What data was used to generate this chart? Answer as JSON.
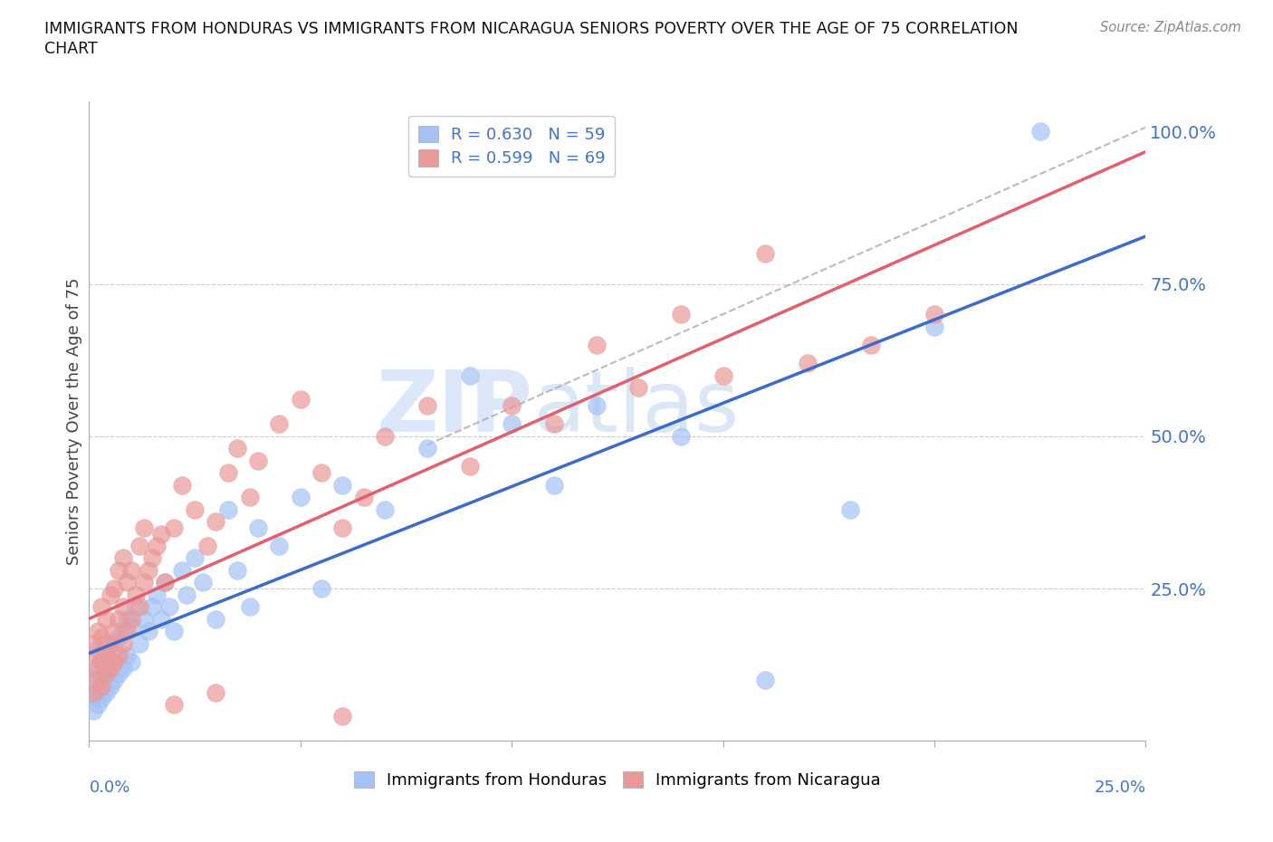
{
  "title_line1": "IMMIGRANTS FROM HONDURAS VS IMMIGRANTS FROM NICARAGUA SENIORS POVERTY OVER THE AGE OF 75 CORRELATION",
  "title_line2": "CHART",
  "source": "Source: ZipAtlas.com",
  "ylabel": "Seniors Poverty Over the Age of 75",
  "watermark_zip": "ZIP",
  "watermark_atlas": "atlas",
  "legend_r_honduras": "R = 0.630",
  "legend_n_honduras": "N = 59",
  "legend_r_nicaragua": "R = 0.599",
  "legend_n_nicaragua": "N = 69",
  "color_honduras": "#a4c2f4",
  "color_nicaragua": "#ea9999",
  "color_trendline_honduras": "#3d6bca",
  "color_trendline_nicaragua": "#e06070",
  "color_trendline_dashed": "#aaaaaa",
  "color_axis_labels": "#4472c4",
  "color_grid": "#cccccc",
  "honduras_x": [
    0.001,
    0.001,
    0.001,
    0.002,
    0.002,
    0.002,
    0.002,
    0.003,
    0.003,
    0.003,
    0.004,
    0.004,
    0.004,
    0.005,
    0.005,
    0.006,
    0.006,
    0.007,
    0.007,
    0.008,
    0.008,
    0.009,
    0.009,
    0.01,
    0.01,
    0.011,
    0.012,
    0.013,
    0.014,
    0.015,
    0.016,
    0.017,
    0.018,
    0.019,
    0.02,
    0.022,
    0.023,
    0.025,
    0.027,
    0.03,
    0.033,
    0.035,
    0.038,
    0.04,
    0.045,
    0.05,
    0.055,
    0.06,
    0.07,
    0.08,
    0.09,
    0.1,
    0.11,
    0.12,
    0.14,
    0.16,
    0.18,
    0.2,
    0.225
  ],
  "honduras_y": [
    0.05,
    0.07,
    0.1,
    0.06,
    0.08,
    0.12,
    0.15,
    0.07,
    0.1,
    0.14,
    0.08,
    0.12,
    0.16,
    0.09,
    0.13,
    0.1,
    0.15,
    0.11,
    0.17,
    0.12,
    0.18,
    0.14,
    0.2,
    0.13,
    0.19,
    0.22,
    0.16,
    0.2,
    0.18,
    0.22,
    0.24,
    0.2,
    0.26,
    0.22,
    0.18,
    0.28,
    0.24,
    0.3,
    0.26,
    0.2,
    0.38,
    0.28,
    0.22,
    0.35,
    0.32,
    0.4,
    0.25,
    0.42,
    0.38,
    0.48,
    0.6,
    0.52,
    0.42,
    0.55,
    0.5,
    0.1,
    0.38,
    0.68,
    1.0
  ],
  "nicaragua_x": [
    0.001,
    0.001,
    0.001,
    0.002,
    0.002,
    0.002,
    0.003,
    0.003,
    0.003,
    0.003,
    0.004,
    0.004,
    0.004,
    0.005,
    0.005,
    0.005,
    0.006,
    0.006,
    0.006,
    0.007,
    0.007,
    0.007,
    0.008,
    0.008,
    0.008,
    0.009,
    0.009,
    0.01,
    0.01,
    0.011,
    0.012,
    0.012,
    0.013,
    0.013,
    0.014,
    0.015,
    0.016,
    0.017,
    0.018,
    0.02,
    0.022,
    0.025,
    0.028,
    0.03,
    0.033,
    0.035,
    0.038,
    0.04,
    0.045,
    0.05,
    0.055,
    0.06,
    0.065,
    0.07,
    0.08,
    0.09,
    0.1,
    0.11,
    0.12,
    0.13,
    0.14,
    0.15,
    0.16,
    0.17,
    0.185,
    0.2,
    0.02,
    0.03,
    0.06
  ],
  "nicaragua_y": [
    0.08,
    0.12,
    0.16,
    0.1,
    0.14,
    0.18,
    0.09,
    0.13,
    0.17,
    0.22,
    0.11,
    0.15,
    0.2,
    0.12,
    0.16,
    0.24,
    0.13,
    0.18,
    0.25,
    0.14,
    0.2,
    0.28,
    0.16,
    0.22,
    0.3,
    0.18,
    0.26,
    0.2,
    0.28,
    0.24,
    0.22,
    0.32,
    0.26,
    0.35,
    0.28,
    0.3,
    0.32,
    0.34,
    0.26,
    0.35,
    0.42,
    0.38,
    0.32,
    0.36,
    0.44,
    0.48,
    0.4,
    0.46,
    0.52,
    0.56,
    0.44,
    0.35,
    0.4,
    0.5,
    0.55,
    0.45,
    0.55,
    0.52,
    0.65,
    0.58,
    0.7,
    0.6,
    0.8,
    0.62,
    0.65,
    0.7,
    0.06,
    0.08,
    0.04
  ],
  "xlim": [
    0,
    0.25
  ],
  "ylim": [
    0,
    1.05
  ],
  "trendline_x_start": 0.0,
  "trendline_x_end": 0.25
}
